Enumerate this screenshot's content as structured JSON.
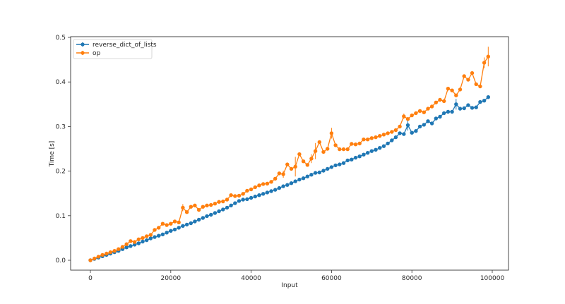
{
  "chart_data": {
    "type": "line",
    "title": "",
    "xlabel": "Input",
    "ylabel": "Time [s]",
    "xlim": [
      -5000,
      104000
    ],
    "ylim": [
      -0.022,
      0.505
    ],
    "grid": false,
    "legend_position": "upper left",
    "x_ticks": [
      0,
      20000,
      40000,
      60000,
      80000,
      100000
    ],
    "x_tick_labels": [
      "0",
      "20000",
      "40000",
      "60000",
      "80000",
      "100000"
    ],
    "y_ticks": [
      0.0,
      0.1,
      0.2,
      0.3,
      0.4,
      0.5
    ],
    "y_tick_labels": [
      "0.0",
      "0.1",
      "0.2",
      "0.3",
      "0.4",
      "0.5"
    ],
    "x": [
      0,
      1000,
      2000,
      3000,
      4000,
      5000,
      6000,
      7000,
      8000,
      9000,
      10000,
      11000,
      12000,
      13000,
      14000,
      15000,
      16000,
      17000,
      18000,
      19000,
      20000,
      21000,
      22000,
      23000,
      24000,
      25000,
      26000,
      27000,
      28000,
      29000,
      30000,
      31000,
      32000,
      33000,
      34000,
      35000,
      36000,
      37000,
      38000,
      39000,
      40000,
      41000,
      42000,
      43000,
      44000,
      45000,
      46000,
      47000,
      48000,
      49000,
      50000,
      51000,
      52000,
      53000,
      54000,
      55000,
      56000,
      57000,
      58000,
      59000,
      60000,
      61000,
      62000,
      63000,
      64000,
      65000,
      66000,
      67000,
      68000,
      69000,
      70000,
      71000,
      72000,
      73000,
      74000,
      75000,
      76000,
      77000,
      78000,
      79000,
      80000,
      81000,
      82000,
      83000,
      84000,
      85000,
      86000,
      87000,
      88000,
      89000,
      90000,
      91000,
      92000,
      93000,
      94000,
      95000,
      96000,
      97000,
      98000,
      99000
    ],
    "series": [
      {
        "name": "reverse_dict_of_lists",
        "color": "#1f77b4",
        "marker": "o",
        "values": [
          0.0,
          0.003,
          0.006,
          0.009,
          0.012,
          0.015,
          0.018,
          0.021,
          0.025,
          0.029,
          0.032,
          0.035,
          0.038,
          0.042,
          0.045,
          0.049,
          0.052,
          0.055,
          0.058,
          0.062,
          0.066,
          0.069,
          0.073,
          0.077,
          0.08,
          0.083,
          0.087,
          0.091,
          0.095,
          0.099,
          0.102,
          0.106,
          0.11,
          0.114,
          0.118,
          0.123,
          0.128,
          0.133,
          0.136,
          0.137,
          0.14,
          0.143,
          0.146,
          0.149,
          0.152,
          0.155,
          0.158,
          0.162,
          0.166,
          0.169,
          0.173,
          0.177,
          0.181,
          0.184,
          0.188,
          0.192,
          0.196,
          0.197,
          0.201,
          0.205,
          0.209,
          0.213,
          0.215,
          0.218,
          0.224,
          0.226,
          0.23,
          0.233,
          0.237,
          0.241,
          0.245,
          0.248,
          0.252,
          0.256,
          0.262,
          0.269,
          0.276,
          0.285,
          0.283,
          0.303,
          0.286,
          0.29,
          0.3,
          0.304,
          0.312,
          0.307,
          0.318,
          0.322,
          0.33,
          0.333,
          0.333,
          0.35,
          0.34,
          0.341,
          0.348,
          0.342,
          0.343,
          0.355,
          0.358,
          0.366
        ],
        "errors": [
          0,
          0,
          0,
          0,
          0,
          0,
          0,
          0,
          0,
          0,
          0,
          0,
          0,
          0,
          0,
          0,
          0,
          0,
          0,
          0,
          0,
          0,
          0,
          0,
          0,
          0,
          0,
          0,
          0,
          0,
          0,
          0,
          0,
          0,
          0,
          0,
          0,
          0,
          0,
          0,
          0,
          0,
          0,
          0,
          0,
          0,
          0,
          0,
          0,
          0,
          0,
          0,
          0,
          0,
          0,
          0,
          0,
          0,
          0,
          0,
          0,
          0,
          0,
          0,
          0,
          0,
          0,
          0,
          0,
          0,
          0,
          0,
          0,
          0,
          0,
          0,
          0,
          0,
          0,
          0.012,
          0,
          0,
          0,
          0,
          0,
          0,
          0,
          0,
          0,
          0,
          0,
          0.012,
          0,
          0,
          0,
          0,
          0,
          0,
          0,
          0.004
        ]
      },
      {
        "name": "op",
        "color": "#ff7f0e",
        "marker": "o",
        "values": [
          0.0,
          0.004,
          0.008,
          0.012,
          0.015,
          0.018,
          0.021,
          0.025,
          0.03,
          0.036,
          0.043,
          0.041,
          0.047,
          0.05,
          0.054,
          0.057,
          0.068,
          0.073,
          0.082,
          0.079,
          0.082,
          0.087,
          0.085,
          0.118,
          0.108,
          0.12,
          0.123,
          0.113,
          0.12,
          0.123,
          0.124,
          0.127,
          0.131,
          0.132,
          0.136,
          0.146,
          0.144,
          0.145,
          0.149,
          0.156,
          0.159,
          0.164,
          0.168,
          0.171,
          0.172,
          0.176,
          0.183,
          0.195,
          0.193,
          0.215,
          0.205,
          0.21,
          0.238,
          0.222,
          0.214,
          0.228,
          0.245,
          0.265,
          0.243,
          0.25,
          0.285,
          0.258,
          0.249,
          0.249,
          0.249,
          0.261,
          0.26,
          0.262,
          0.271,
          0.271,
          0.274,
          0.276,
          0.279,
          0.282,
          0.285,
          0.288,
          0.292,
          0.3,
          0.323,
          0.317,
          0.325,
          0.33,
          0.335,
          0.332,
          0.34,
          0.345,
          0.354,
          0.36,
          0.357,
          0.385,
          0.381,
          0.37,
          0.383,
          0.413,
          0.405,
          0.42,
          0.395,
          0.39,
          0.443,
          0.457
        ],
        "errors": [
          0,
          0,
          0,
          0,
          0,
          0,
          0,
          0,
          0,
          0,
          0,
          0,
          0,
          0,
          0,
          0,
          0,
          0,
          0,
          0,
          0,
          0,
          0,
          0.008,
          0,
          0,
          0,
          0,
          0,
          0,
          0,
          0,
          0,
          0,
          0,
          0,
          0,
          0,
          0,
          0,
          0,
          0,
          0,
          0,
          0,
          0,
          0,
          0,
          0.008,
          0,
          0,
          0.022,
          0,
          0,
          0,
          0.01,
          0.018,
          0,
          0,
          0,
          0.012,
          0,
          0,
          0,
          0,
          0,
          0,
          0,
          0,
          0,
          0,
          0,
          0,
          0,
          0,
          0,
          0,
          0,
          0.006,
          0,
          0,
          0,
          0,
          0,
          0,
          0,
          0,
          0,
          0,
          0,
          0,
          0,
          0,
          0,
          0,
          0,
          0,
          0,
          0.012,
          0.022
        ]
      }
    ]
  },
  "legend": {
    "items": [
      {
        "label": "reverse_dict_of_lists",
        "color": "#1f77b4"
      },
      {
        "label": "op",
        "color": "#ff7f0e"
      }
    ]
  },
  "axes": {
    "xlabel": "Input",
    "ylabel": "Time [s]"
  }
}
